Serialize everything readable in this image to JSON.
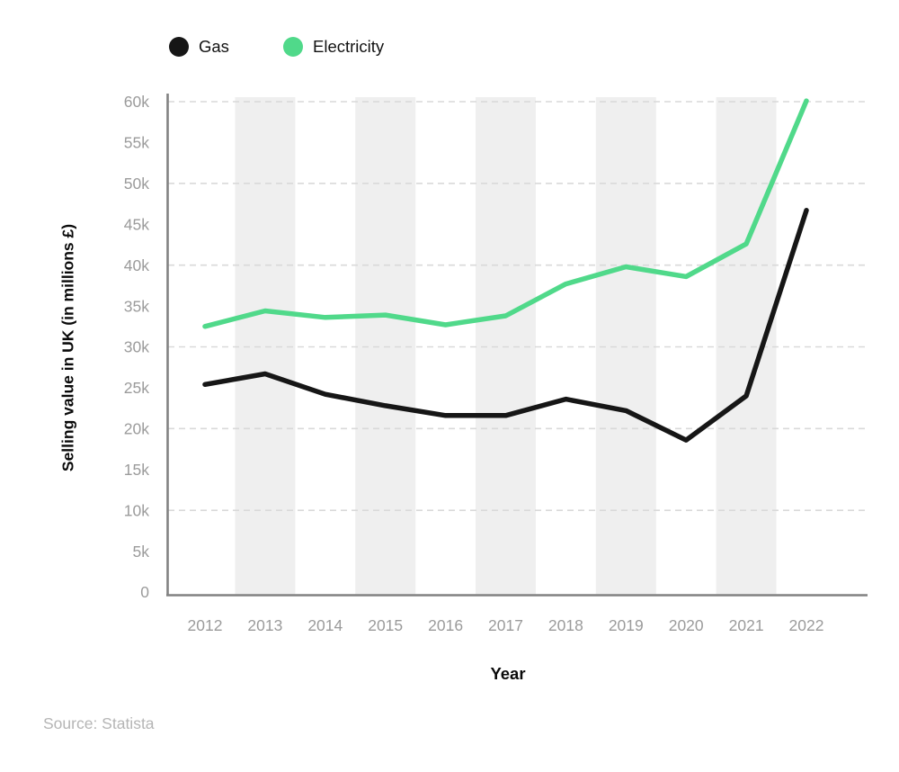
{
  "legend": {
    "items": [
      {
        "label": "Gas",
        "color": "#161616"
      },
      {
        "label": "Electricity",
        "color": "#50d98a"
      }
    ]
  },
  "chart_data": {
    "type": "line",
    "x": [
      2012,
      2013,
      2014,
      2015,
      2016,
      2017,
      2018,
      2019,
      2020,
      2021,
      2022
    ],
    "x_tick_labels": [
      "2012",
      "2013",
      "2014",
      "2015",
      "2016",
      "2017",
      "2018",
      "2019",
      "2020",
      "2021",
      "2022"
    ],
    "series": [
      {
        "name": "Gas",
        "color": "#161616",
        "values": [
          25400,
          26700,
          24200,
          22800,
          21600,
          21600,
          23600,
          22200,
          18600,
          24000,
          46700
        ]
      },
      {
        "name": "Electricity",
        "color": "#50d98a",
        "values": [
          32500,
          34400,
          33600,
          33900,
          32700,
          33800,
          37700,
          39800,
          38600,
          42600,
          60100
        ]
      }
    ],
    "xlabel": "Year",
    "ylabel": "Selling value in UK (in millions £)",
    "ylim": [
      0,
      60000
    ],
    "y_tick_step": 5000,
    "y_tick_labels": [
      "0",
      "5k",
      "10k",
      "15k",
      "20k",
      "25k",
      "30k",
      "35k",
      "40k",
      "45k",
      "50k",
      "55k",
      "60k"
    ],
    "grid": {
      "horizontal_every": 10000,
      "style": "dashed"
    },
    "plot_stripes": {
      "on_years": [
        2013,
        2015,
        2017,
        2019,
        2021
      ],
      "color": "#efefef"
    },
    "legend_position": "top"
  },
  "colors": {
    "background": "#ffffff",
    "axis": "#828282",
    "gridline": "#d9d9d9",
    "tick_text": "#9b9b9b",
    "stripe": "#efefef",
    "source_text": "#b5b5b5"
  },
  "source": {
    "text": "Source: Statista"
  }
}
